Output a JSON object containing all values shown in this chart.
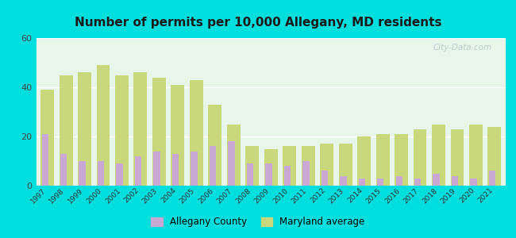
{
  "title": "Number of permits per 10,000 Allegany, MD residents",
  "years": [
    1997,
    1998,
    1999,
    2000,
    2001,
    2002,
    2003,
    2004,
    2005,
    2006,
    2007,
    2008,
    2009,
    2010,
    2011,
    2012,
    2013,
    2014,
    2015,
    2016,
    2017,
    2018,
    2019,
    2020,
    2021
  ],
  "allegany": [
    21,
    13,
    10,
    10,
    9,
    12,
    14,
    13,
    14,
    16,
    18,
    9,
    9,
    8,
    10,
    6,
    4,
    3,
    3,
    4,
    3,
    5,
    4,
    3,
    6
  ],
  "maryland": [
    39,
    45,
    46,
    49,
    45,
    46,
    44,
    41,
    43,
    33,
    25,
    16,
    15,
    16,
    16,
    17,
    17,
    20,
    21,
    21,
    23,
    25,
    23,
    25,
    24
  ],
  "allegany_color": "#c9a8d4",
  "maryland_color": "#c8d87a",
  "background_outer": "#00dede",
  "background_inner": "#e8f5e9",
  "ylim": [
    0,
    60
  ],
  "yticks": [
    0,
    20,
    40,
    60
  ],
  "legend_allegany": "Allegany County",
  "legend_maryland": "Maryland average",
  "title_fontsize": 11,
  "watermark": "City-Data.com"
}
